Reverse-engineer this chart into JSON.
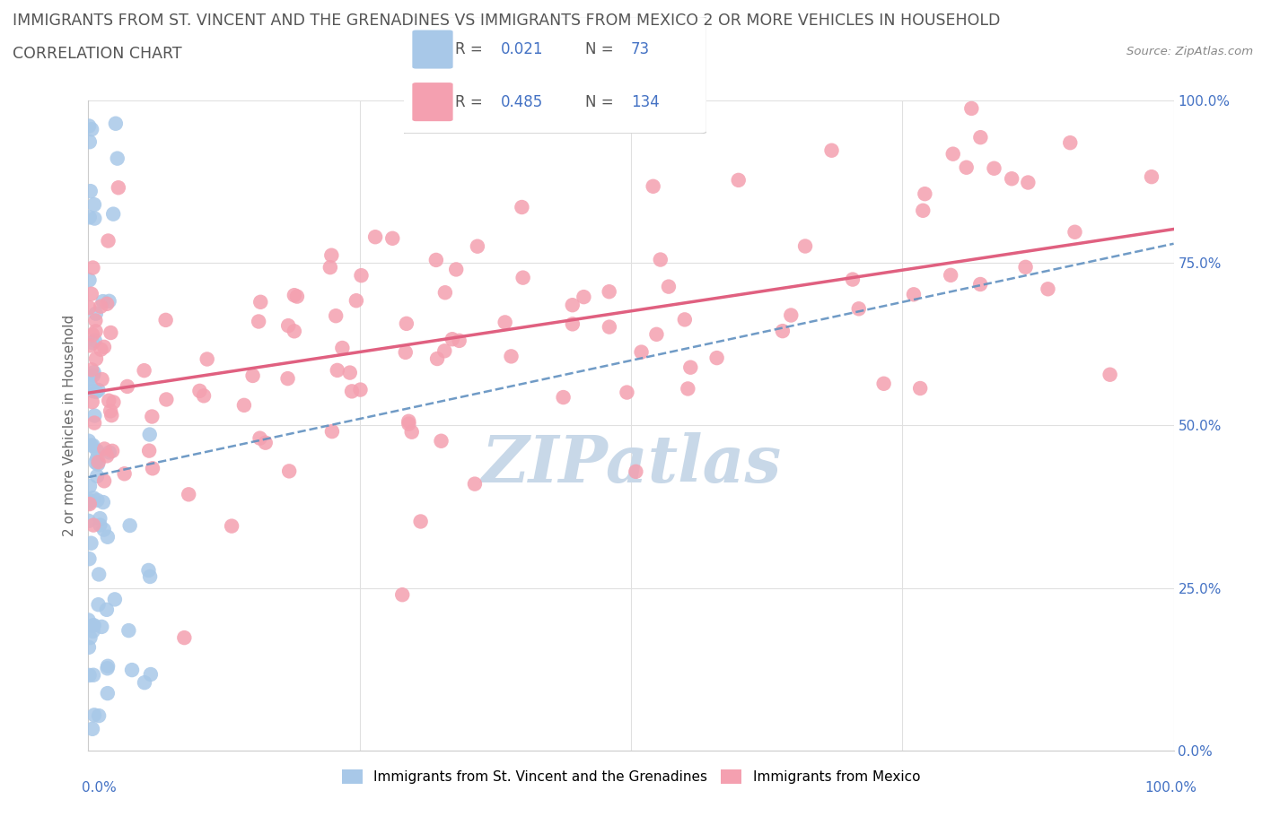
{
  "title_line1": "IMMIGRANTS FROM ST. VINCENT AND THE GRENADINES VS IMMIGRANTS FROM MEXICO 2 OR MORE VEHICLES IN HOUSEHOLD",
  "title_line2": "CORRELATION CHART",
  "source_text": "Source: ZipAtlas.com",
  "ylabel": "2 or more Vehicles in Household",
  "x_min": 0.0,
  "x_max": 1.0,
  "y_min": 0.0,
  "y_max": 1.0,
  "blue_R": 0.021,
  "blue_N": 73,
  "pink_R": 0.485,
  "pink_N": 134,
  "blue_color": "#a8c8e8",
  "pink_color": "#f4a0b0",
  "blue_line_color": "#6090c0",
  "pink_line_color": "#e06080",
  "legend_labels": [
    "Immigrants from St. Vincent and the Grenadines",
    "Immigrants from Mexico"
  ],
  "watermark_color": "#c8d8e8",
  "background_color": "#ffffff",
  "grid_color": "#e0e0e0",
  "right_tick_color": "#4472c4",
  "title_color": "#555555",
  "source_color": "#888888"
}
